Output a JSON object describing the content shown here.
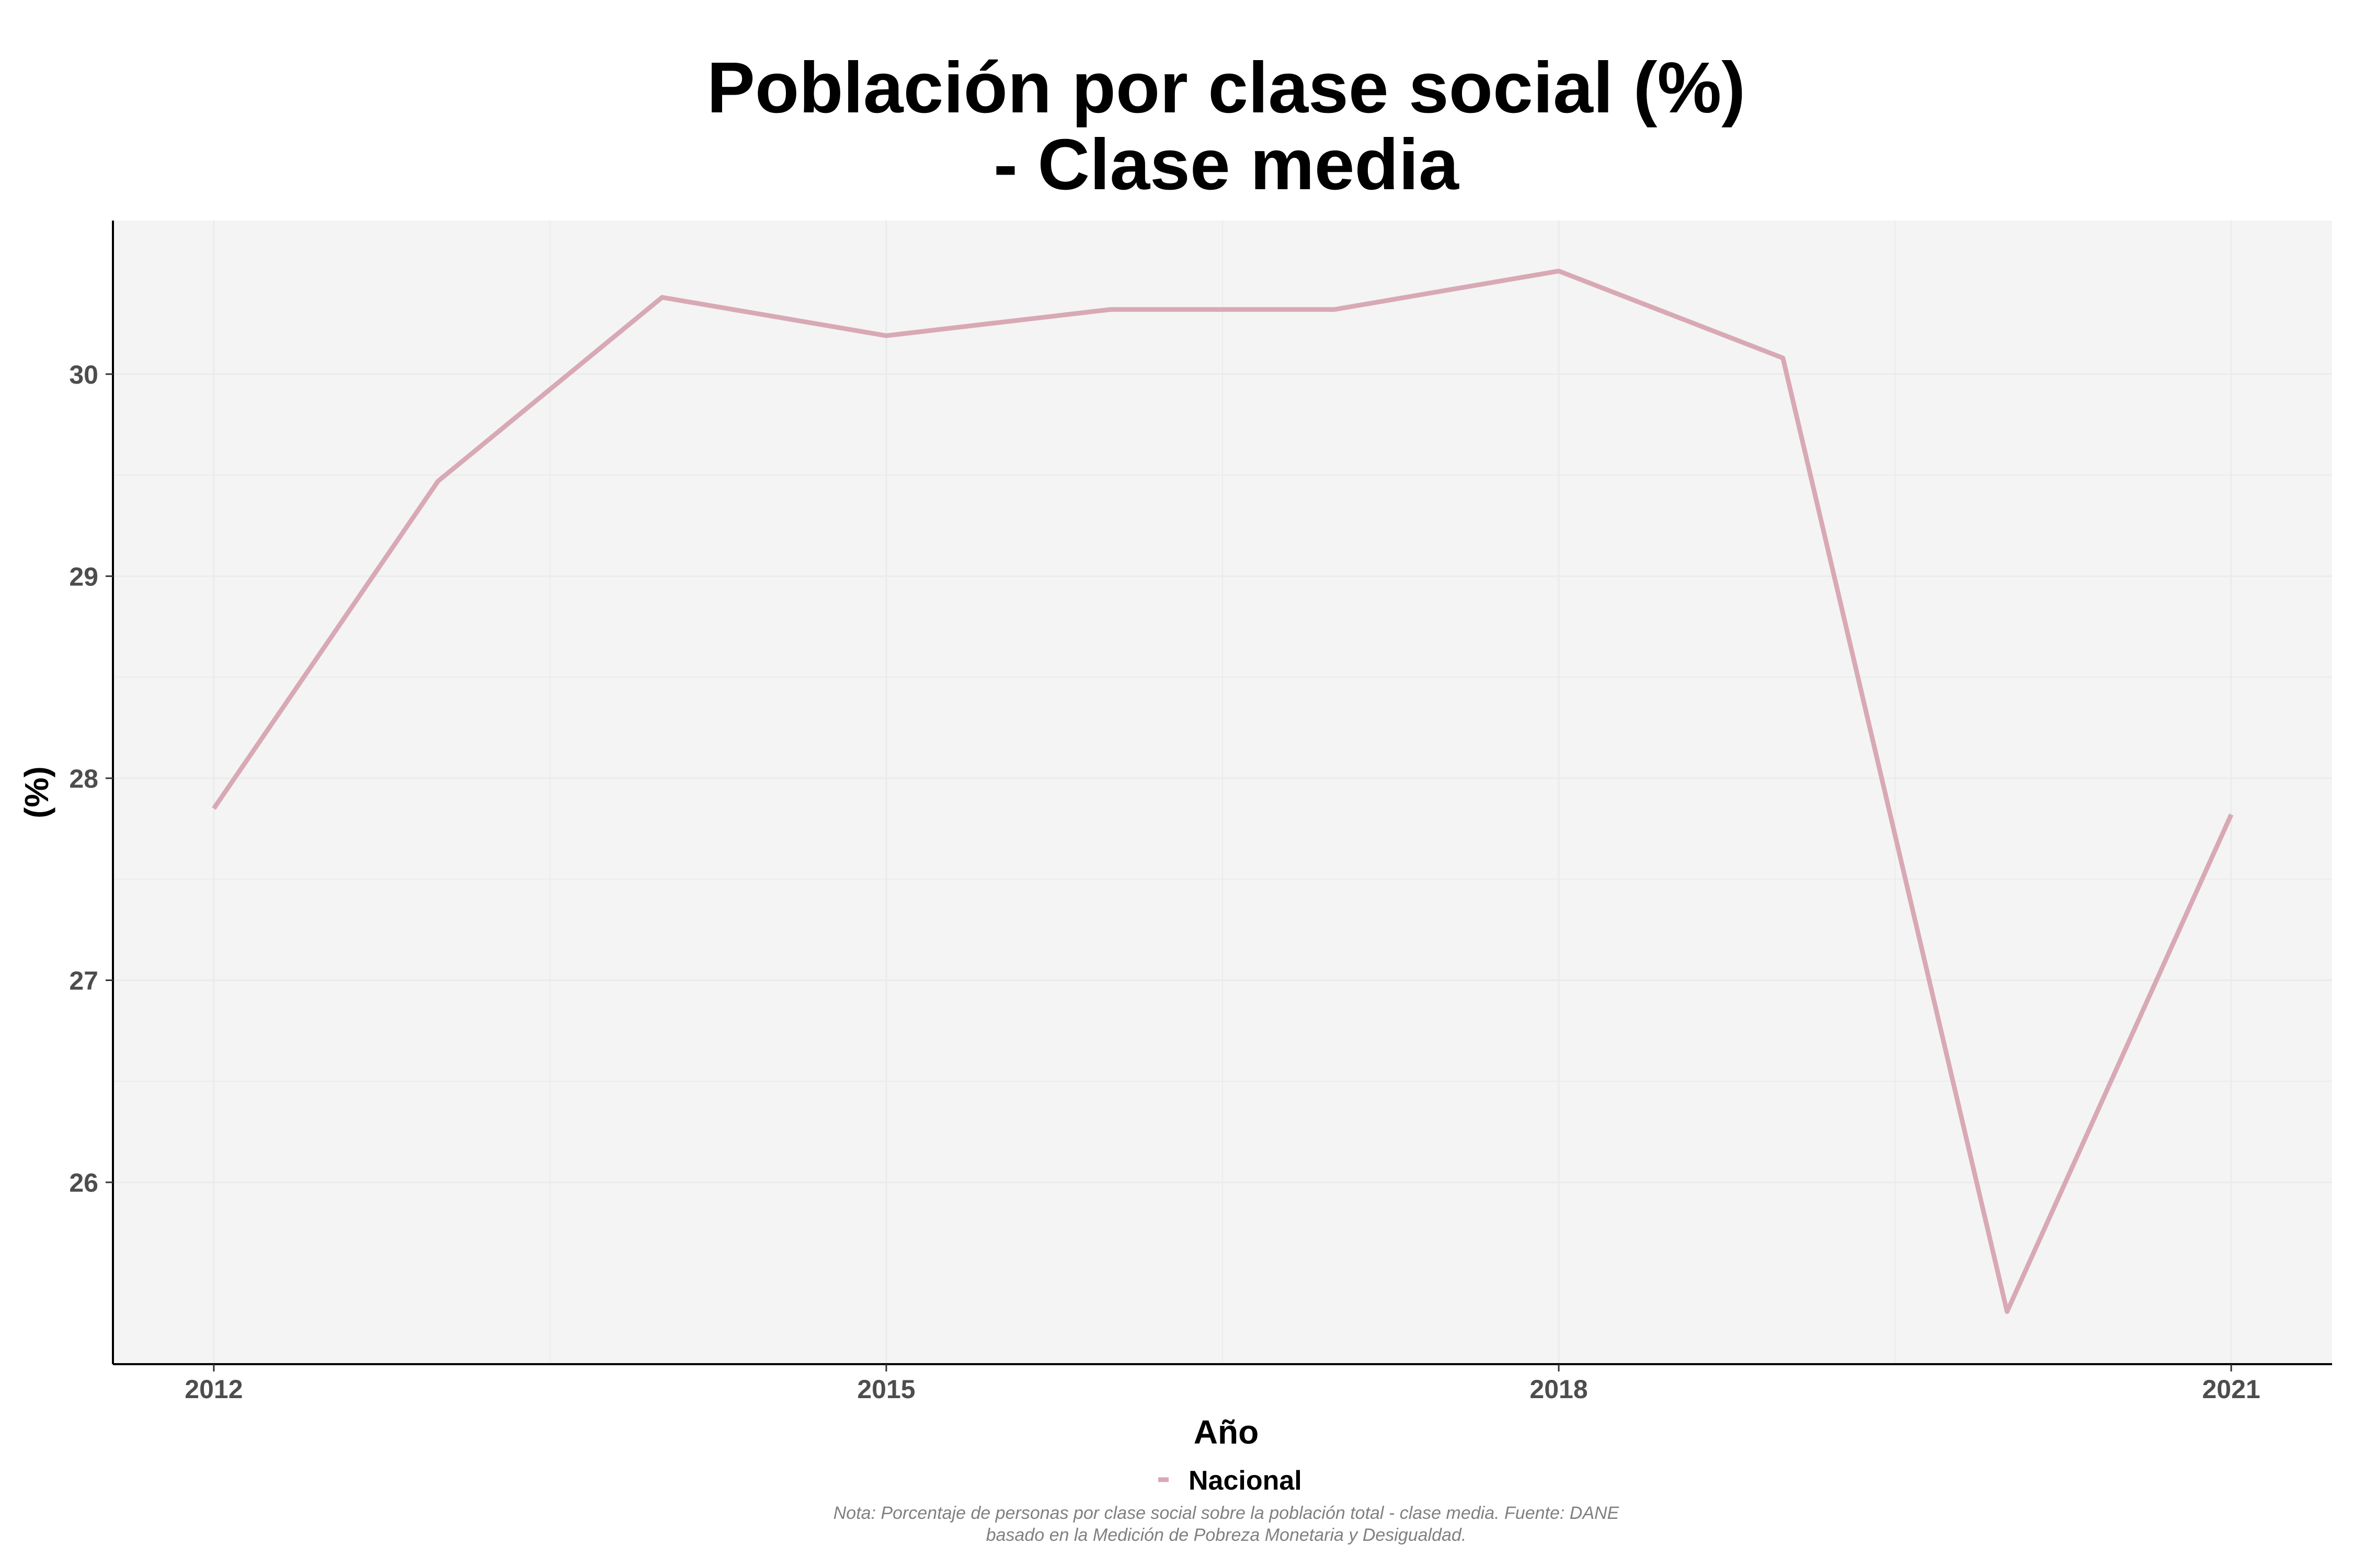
{
  "chart_data": {
    "type": "line",
    "title_lines": [
      "Población por clase social (%)",
      "- Clase media"
    ],
    "xlabel": "Año",
    "ylabel": "(%)",
    "x": [
      2012,
      2013,
      2014,
      2015,
      2016,
      2017,
      2018,
      2019,
      2020,
      2021
    ],
    "series": [
      {
        "name": "Nacional",
        "color": "#d8a9b5",
        "values": [
          27.85,
          29.47,
          30.38,
          30.19,
          30.32,
          30.32,
          30.51,
          30.08,
          25.36,
          27.82
        ]
      }
    ],
    "xticks": [
      2012,
      2015,
      2018,
      2021
    ],
    "xtick_labels": [
      "2012",
      "2015",
      "2018",
      "2021"
    ],
    "yticks": [
      26,
      27,
      28,
      29,
      30
    ],
    "ytick_labels": [
      "26",
      "27",
      "28",
      "29",
      "30"
    ],
    "xlim": [
      2011.55,
      2021.45
    ],
    "ylim": [
      25.1,
      30.76
    ],
    "grid": true,
    "legend_position": "bottom",
    "note_lines": [
      "Nota: Porcentaje de personas por clase social sobre la población total - clase media. Fuente: DANE",
      "basado en la Medición de Pobreza Monetaria y Desigualdad."
    ],
    "colors": {
      "panel_background": "#f4f4f4",
      "grid": "#ebebeb",
      "axis_line": "#000000"
    }
  }
}
